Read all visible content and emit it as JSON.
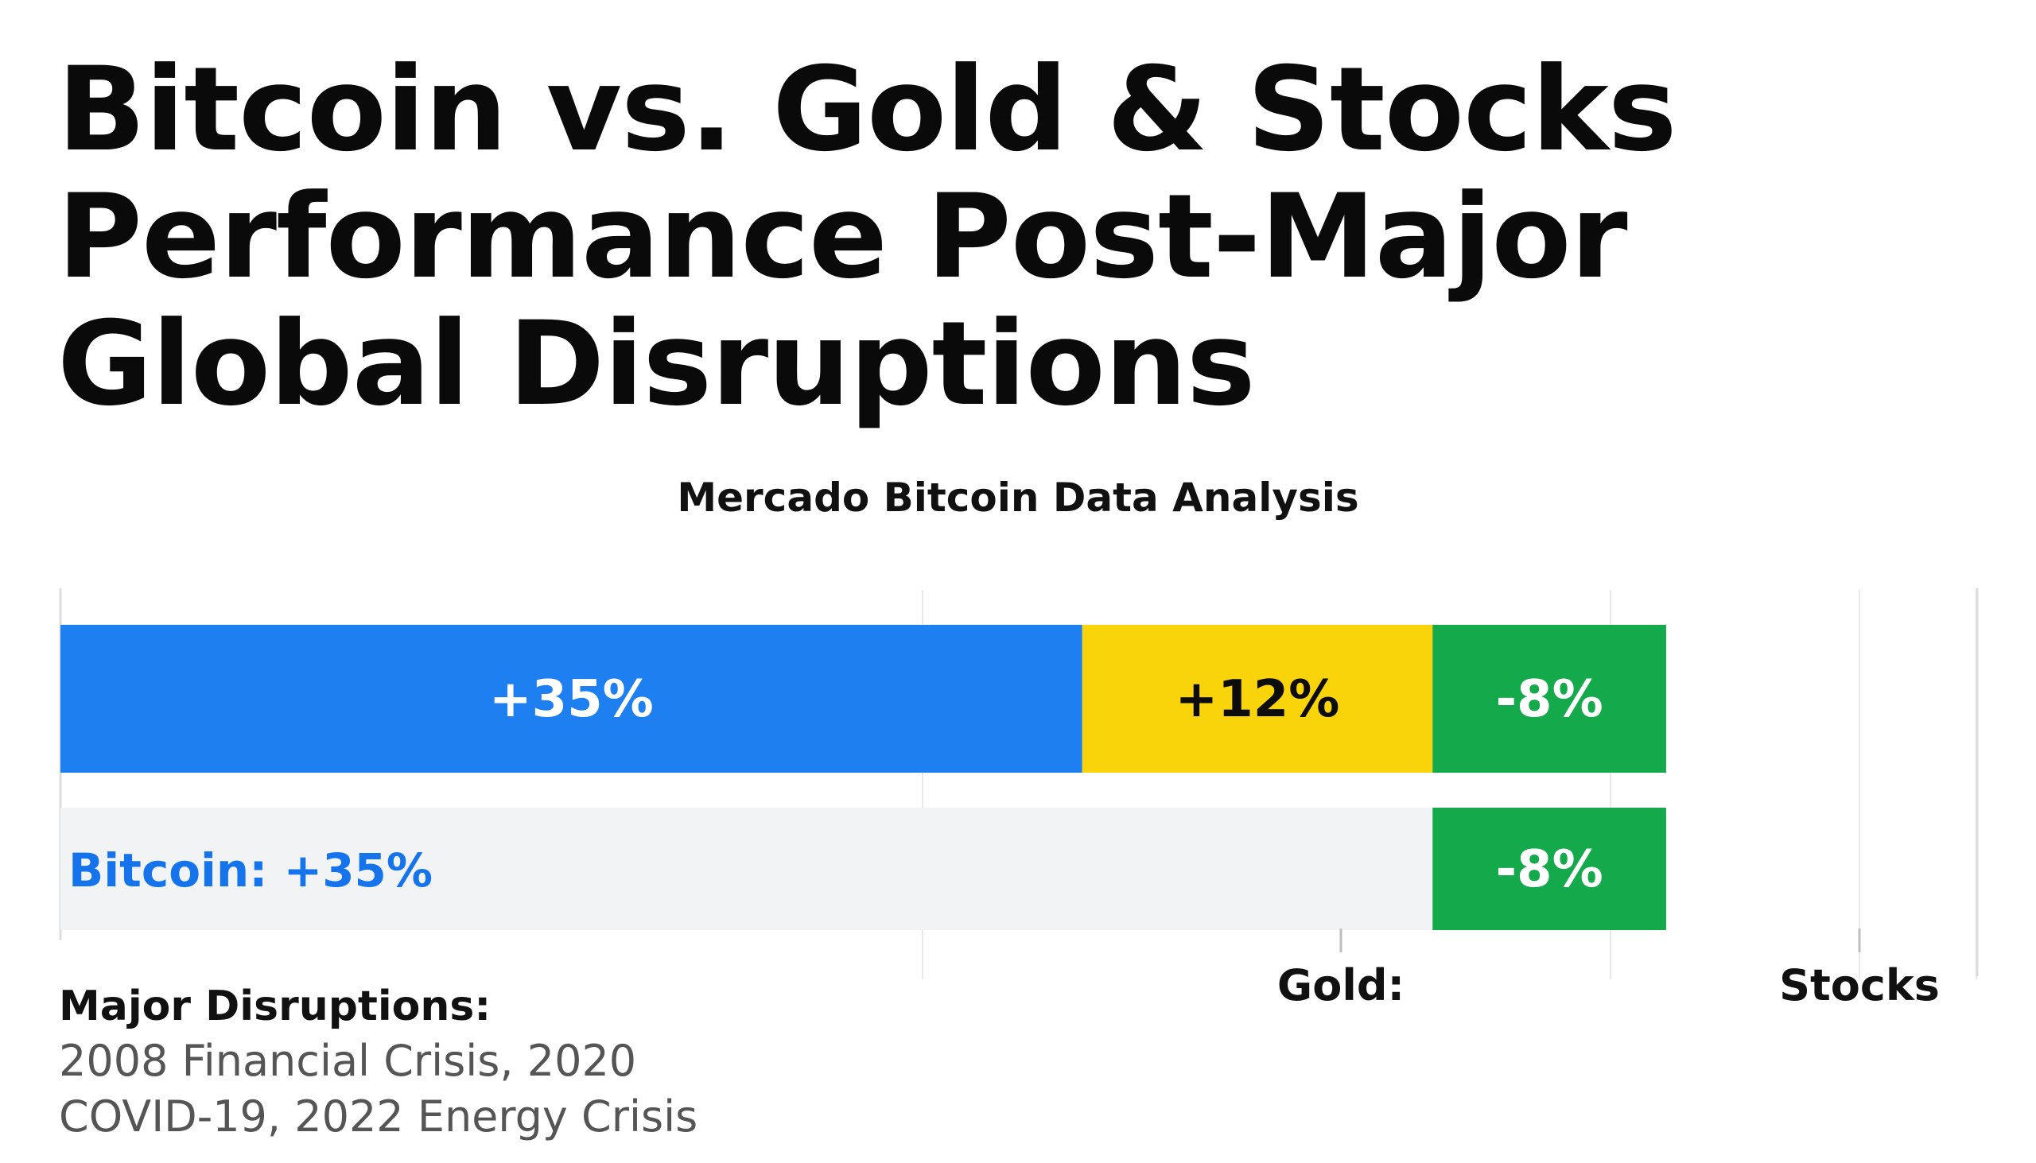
{
  "title": {
    "line1": "Bitcoin vs. Gold & Stocks",
    "line2": "Performance Post-Major",
    "line3": "Global Disruptions"
  },
  "subtitle": "Mercado Bitcoin Data Analysis",
  "colors": {
    "bitcoin": "#1e7ff0",
    "gold": "#f9d40a",
    "stocks": "#14a94b",
    "bitcoin_label": "#1574ec",
    "track": "#f2f3f5",
    "grid": "#e9e9e9",
    "axis": "#dcdcdc"
  },
  "chart_data": {
    "type": "bar",
    "orientation": "horizontal-stacked",
    "categories": [
      "Bitcoin",
      "Gold",
      "Stocks"
    ],
    "series": [
      {
        "name": "Performance",
        "values": [
          35,
          12,
          -8
        ],
        "labels": [
          "+35%",
          "+12%",
          "-8%"
        ]
      }
    ],
    "second_row": {
      "bitcoin_label": "Bitcoin: +35%",
      "stocks_label": "-8%"
    },
    "axis_labels": {
      "gold": "Gold:",
      "stocks": "Stocks"
    },
    "xlabel": "",
    "ylabel": ""
  },
  "disruptions": {
    "heading": "Major Disruptions:",
    "text": "2008 Financial Crisis, 2020 COVID-19, 2022 Energy Crisis"
  }
}
